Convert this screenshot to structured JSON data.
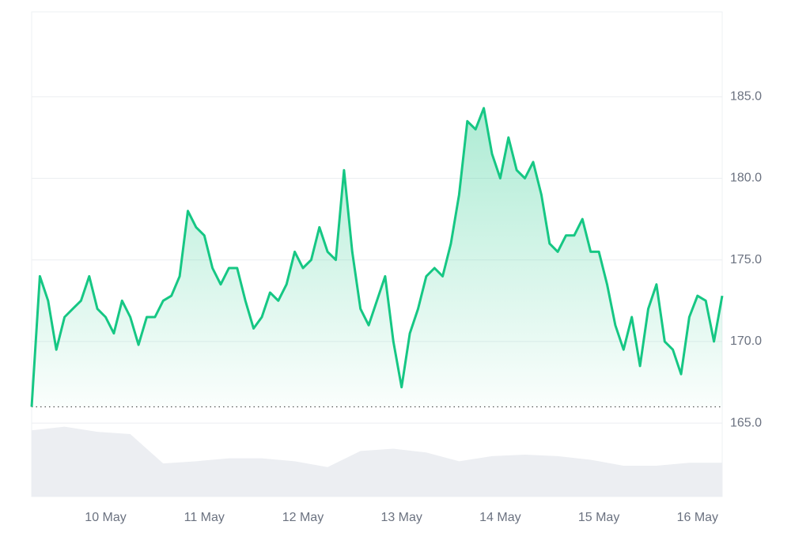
{
  "chart_data": {
    "type": "line",
    "values": [
      166.0,
      174,
      172.5,
      169.5,
      171.5,
      172,
      172.5,
      174,
      172,
      171.5,
      170.5,
      172.5,
      171.5,
      169.8,
      171.5,
      171.5,
      172.5,
      172.8,
      174,
      178,
      177,
      176.5,
      174.5,
      173.5,
      174.5,
      174.5,
      172.5,
      170.8,
      171.5,
      173,
      172.5,
      173.5,
      175.5,
      174.5,
      175,
      177,
      175.5,
      175,
      180.5,
      175.5,
      172,
      171,
      172.5,
      174,
      170,
      167.2,
      170.5,
      172,
      174,
      174.5,
      174,
      176,
      179,
      183.5,
      183,
      184.3,
      181.5,
      180,
      182.5,
      180.5,
      180,
      181,
      179,
      176,
      175.5,
      176.5,
      176.5,
      177.5,
      175.5,
      175.5,
      173.5,
      171,
      169.5,
      171.5,
      168.5,
      172,
      173.5,
      170,
      169.5,
      168,
      171.5,
      172.8,
      172.5,
      170,
      172.8
    ],
    "color": "#16c784",
    "baseline": 166.0,
    "xlim": [
      0,
      84
    ],
    "xticks": [
      {
        "value": 9,
        "label": "10 May"
      },
      {
        "value": 21,
        "label": "11 May"
      },
      {
        "value": 33,
        "label": "12 May"
      },
      {
        "value": 45,
        "label": "13 May"
      },
      {
        "value": 57,
        "label": "14 May"
      },
      {
        "value": 69,
        "label": "15 May"
      },
      {
        "value": 81,
        "label": "16 May"
      }
    ],
    "ylim": [
      160.5,
      190.2
    ],
    "yticks": [
      {
        "value": 165,
        "label": "165.0"
      },
      {
        "value": 170,
        "label": "170.0"
      },
      {
        "value": 175,
        "label": "175.0"
      },
      {
        "value": 180,
        "label": "180.0"
      },
      {
        "value": 185,
        "label": "185.0"
      }
    ],
    "grid": true,
    "volume": {
      "x": [
        0,
        4,
        8,
        12,
        16,
        20,
        24,
        28,
        32,
        36,
        40,
        44,
        48,
        52,
        56,
        60,
        64,
        68,
        72,
        76,
        80,
        84
      ],
      "values": [
        90,
        95,
        88,
        85,
        45,
        48,
        52,
        52,
        48,
        40,
        62,
        65,
        60,
        48,
        55,
        57,
        55,
        50,
        42,
        42,
        46,
        46
      ],
      "ylim": [
        0,
        100
      ],
      "color": "#eceef2"
    }
  }
}
